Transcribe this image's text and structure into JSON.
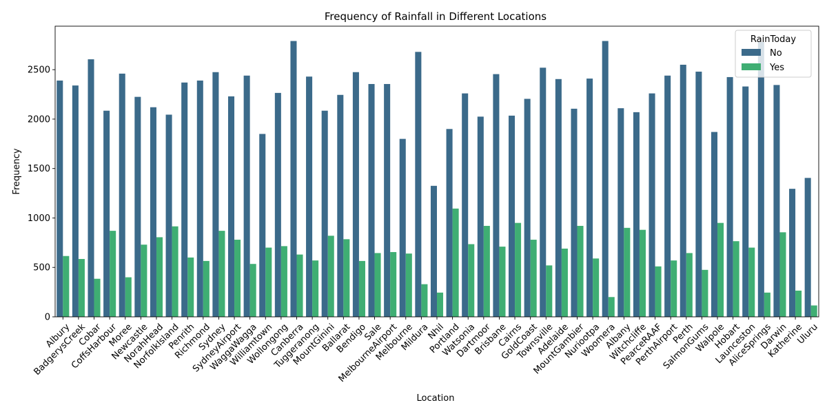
{
  "chart_data": {
    "type": "bar",
    "title": "Frequency of Rainfall in Different Locations",
    "xlabel": "Location",
    "ylabel": "Frequency",
    "ylim": [
      0,
      2940
    ],
    "yticks": [
      0,
      500,
      1000,
      1500,
      2000,
      2500
    ],
    "grid": false,
    "legend": {
      "title": "RainToday",
      "placement": "top-right"
    },
    "categories": [
      "Albury",
      "BadgerysCreek",
      "Cobar",
      "CoffsHarbour",
      "Moree",
      "Newcastle",
      "NorahHead",
      "NorfolkIsland",
      "Penrith",
      "Richmond",
      "Sydney",
      "SydneyAirport",
      "WaggaWagga",
      "Williamtown",
      "Wollongong",
      "Canberra",
      "Tuggeranong",
      "MountGinini",
      "Ballarat",
      "Bendigo",
      "Sale",
      "MelbourneAirport",
      "Melbourne",
      "Mildura",
      "Nhil",
      "Portland",
      "Watsonia",
      "Dartmoor",
      "Brisbane",
      "Cairns",
      "GoldCoast",
      "Townsville",
      "Adelaide",
      "MountGambier",
      "Nuriootpa",
      "Woomera",
      "Albany",
      "Witchcliffe",
      "PearceRAAF",
      "PerthAirport",
      "Perth",
      "SalmonGums",
      "Walpole",
      "Hobart",
      "Launceston",
      "AliceSprings",
      "Darwin",
      "Katherine",
      "Uluru"
    ],
    "series": [
      {
        "name": "No",
        "color": "#3b6a8a",
        "values": [
          2390,
          2340,
          2605,
          2085,
          2460,
          2225,
          2120,
          2045,
          2370,
          2390,
          2475,
          2230,
          2440,
          1850,
          2265,
          2790,
          2430,
          2085,
          2245,
          2475,
          2355,
          2355,
          1800,
          2680,
          1325,
          1900,
          2260,
          2025,
          2455,
          2035,
          2205,
          2520,
          2405,
          2105,
          2410,
          2790,
          2110,
          2070,
          2260,
          2440,
          2550,
          2480,
          1870,
          2425,
          2330,
          2780,
          2345,
          1295,
          1405
        ]
      },
      {
        "name": "Yes",
        "color": "#3fae73",
        "values": [
          615,
          585,
          385,
          870,
          400,
          730,
          805,
          915,
          600,
          565,
          870,
          780,
          535,
          700,
          715,
          630,
          570,
          820,
          785,
          565,
          645,
          655,
          640,
          330,
          245,
          1095,
          735,
          920,
          710,
          950,
          780,
          520,
          690,
          920,
          590,
          200,
          900,
          880,
          510,
          570,
          645,
          475,
          950,
          765,
          700,
          245,
          855,
          265,
          115
        ]
      }
    ]
  }
}
